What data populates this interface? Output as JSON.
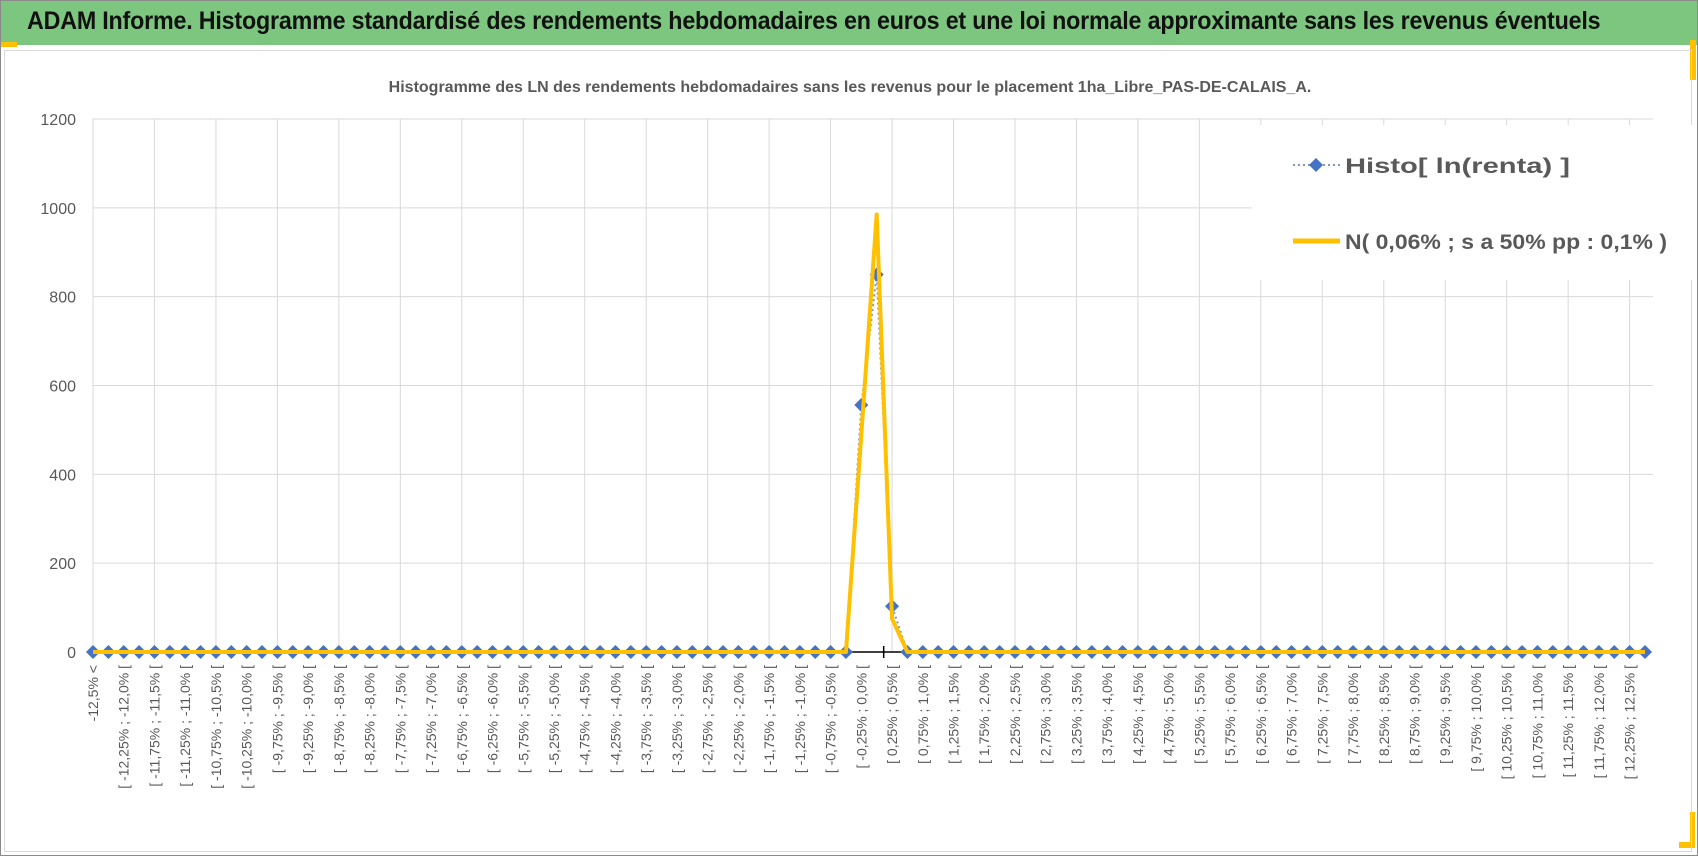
{
  "header": {
    "title": "ADAM Informe. Histogramme standardisé des rendements hebdomadaires en euros et une loi normale approximante sans les revenus éventuels"
  },
  "colors": {
    "header_bg": "#7dc67f",
    "accent": "#ffc000",
    "histo": "#4472c4",
    "normal": "#ffc000",
    "grid": "#d9d9d9",
    "text": "#595959"
  },
  "chart_data": {
    "type": "line",
    "title": "Histogramme des LN des rendements hebdomadaires sans les revenus pour le placement 1ha_Libre_PAS-DE-CALAIS_A.",
    "xlabel": "",
    "ylabel": "",
    "ylim": [
      0,
      1200
    ],
    "yticks": [
      "0",
      "200",
      "400",
      "600",
      "800",
      "1000",
      "1200"
    ],
    "grid": true,
    "legend_position": "top-right",
    "x_labels_every": 2,
    "x_labels": [
      "-12,5% <",
      "[ -12,25% ; -12,0% [",
      "[ -11,75% ; -11,5% [",
      "[ -11,25% ; -11,0% [",
      "[ -10,75% ; -10,5% [",
      "[ -10,25% ; -10,0% [",
      "[ -9,75% ; -9,5% [",
      "[ -9,25% ; -9,0% [",
      "[ -8,75% ; -8,5% [",
      "[ -8,25% ; -8,0% [",
      "[ -7,75% ; -7,5% [",
      "[ -7,25% ; -7,0% [",
      "[ -6,75% ; -6,5% [",
      "[ -6,25% ; -6,0% [",
      "[ -5,75% ; -5,5% [",
      "[ -5,25% ; -5,0% [",
      "[ -4,75% ; -4,5% [",
      "[ -4,25% ; -4,0% [",
      "[ -3,75% ; -3,5% [",
      "[ -3,25% ; -3,0% [",
      "[ -2,75% ; -2,5% [",
      "[ -2,25% ; -2,0% [",
      "[ -1,75% ; -1,5% [",
      "[ -1,25% ; -1,0% [",
      "[ -0,75% ; -0,5% [",
      "[ -0,25% ; 0,0% [",
      "[ 0,25% ; 0,5% [",
      "[ 0,75% ; 1,0% [",
      "[ 1,25% ; 1,5% [",
      "[ 1,75% ; 2,0% [",
      "[ 2,25% ; 2,5% [",
      "[ 2,75% ; 3,0% [",
      "[ 3,25% ; 3,5% [",
      "[ 3,75% ; 4,0% [",
      "[ 4,25% ; 4,5% [",
      "[ 4,75% ; 5,0% [",
      "[ 5,25% ; 5,5% [",
      "[ 5,75% ; 6,0% [",
      "[ 6,25% ; 6,5% [",
      "[ 6,75% ; 7,0% [",
      "[ 7,25% ; 7,5% [",
      "[ 7,75% ; 8,0% [",
      "[ 8,25% ; 8,5% [",
      "[ 8,75% ; 9,0% [",
      "[ 9,25% ; 9,5% [",
      "[ 9,75% ; 10,0% [",
      "[ 10,25% ; 10,5% [",
      "[ 10,75% ; 11,0% [",
      "[ 11,25% ; 11,5% [",
      "[ 11,75% ; 12,0% [",
      "[ 12,25% ; 12,5% ["
    ],
    "series": [
      {
        "name": "Histo[ ln(renta) ]",
        "style": "dotted-diamond",
        "values": [
          0,
          0,
          0,
          0,
          0,
          0,
          0,
          0,
          0,
          0,
          0,
          0,
          0,
          0,
          0,
          0,
          0,
          0,
          0,
          0,
          0,
          0,
          0,
          0,
          0,
          0,
          0,
          0,
          0,
          0,
          0,
          0,
          0,
          0,
          0,
          0,
          0,
          0,
          0,
          0,
          0,
          0,
          0,
          0,
          0,
          0,
          0,
          0,
          0,
          0,
          556,
          850,
          103,
          0,
          0,
          0,
          0,
          0,
          0,
          0,
          0,
          0,
          0,
          0,
          0,
          0,
          0,
          0,
          0,
          0,
          0,
          0,
          0,
          0,
          0,
          0,
          0,
          0,
          0,
          0,
          0,
          0,
          0,
          0,
          0,
          0,
          0,
          0,
          0,
          0,
          0,
          0,
          0,
          0,
          0,
          0,
          0,
          0,
          0,
          0,
          0,
          0
        ]
      },
      {
        "name": "N( 0,06% ; s a 50% pp : 0,1% )",
        "style": "solid",
        "values": [
          0,
          0,
          0,
          0,
          0,
          0,
          0,
          0,
          0,
          0,
          0,
          0,
          0,
          0,
          0,
          0,
          0,
          0,
          0,
          0,
          0,
          0,
          0,
          0,
          0,
          0,
          0,
          0,
          0,
          0,
          0,
          0,
          0,
          0,
          0,
          0,
          0,
          0,
          0,
          0,
          0,
          0,
          0,
          0,
          0,
          0,
          0,
          0,
          0,
          0,
          490,
          985,
          75,
          0,
          0,
          0,
          0,
          0,
          0,
          0,
          0,
          0,
          0,
          0,
          0,
          0,
          0,
          0,
          0,
          0,
          0,
          0,
          0,
          0,
          0,
          0,
          0,
          0,
          0,
          0,
          0,
          0,
          0,
          0,
          0,
          0,
          0,
          0,
          0,
          0,
          0,
          0,
          0,
          0,
          0,
          0,
          0,
          0,
          0,
          0,
          0,
          0
        ]
      }
    ]
  }
}
